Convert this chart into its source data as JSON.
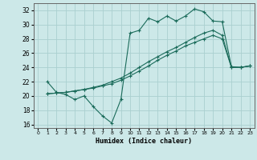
{
  "xlabel": "Humidex (Indice chaleur)",
  "bg_color": "#cce8e8",
  "grid_color": "#aad0d0",
  "line_color": "#1a6b5a",
  "xlim": [
    -0.5,
    23.5
  ],
  "ylim": [
    15.5,
    33.0
  ],
  "xticks": [
    0,
    1,
    2,
    3,
    4,
    5,
    6,
    7,
    8,
    9,
    10,
    11,
    12,
    13,
    14,
    15,
    16,
    17,
    18,
    19,
    20,
    21,
    22,
    23
  ],
  "yticks": [
    16,
    18,
    20,
    22,
    24,
    26,
    28,
    30,
    32
  ],
  "line1_x": [
    1,
    2,
    3,
    4,
    5,
    6,
    7,
    8,
    9,
    10,
    11,
    12,
    13,
    14,
    15,
    16,
    17,
    18,
    19,
    20,
    21,
    22,
    23
  ],
  "line1_y": [
    22.0,
    20.5,
    20.2,
    19.5,
    20.0,
    18.5,
    17.2,
    16.2,
    19.5,
    28.8,
    29.2,
    30.9,
    30.4,
    31.2,
    30.5,
    31.2,
    32.2,
    31.8,
    30.5,
    30.4,
    24.1,
    24.0,
    24.2
  ],
  "line2_x": [
    1,
    2,
    3,
    4,
    5,
    6,
    7,
    8,
    9,
    10,
    11,
    12,
    13,
    14,
    15,
    16,
    17,
    18,
    19,
    20,
    21,
    22,
    23
  ],
  "line2_y": [
    20.3,
    20.4,
    20.5,
    20.7,
    20.9,
    21.2,
    21.5,
    22.0,
    22.5,
    23.2,
    24.0,
    24.8,
    25.5,
    26.2,
    26.8,
    27.5,
    28.2,
    28.8,
    29.2,
    28.5,
    24.0,
    24.0,
    24.2
  ],
  "line3_x": [
    1,
    2,
    3,
    4,
    5,
    6,
    7,
    8,
    9,
    10,
    11,
    12,
    13,
    14,
    15,
    16,
    17,
    18,
    19,
    20,
    21,
    22,
    23
  ],
  "line3_y": [
    20.3,
    20.4,
    20.5,
    20.7,
    20.9,
    21.1,
    21.4,
    21.7,
    22.2,
    22.8,
    23.5,
    24.2,
    25.0,
    25.7,
    26.3,
    27.0,
    27.5,
    28.0,
    28.5,
    28.0,
    24.0,
    24.0,
    24.2
  ]
}
